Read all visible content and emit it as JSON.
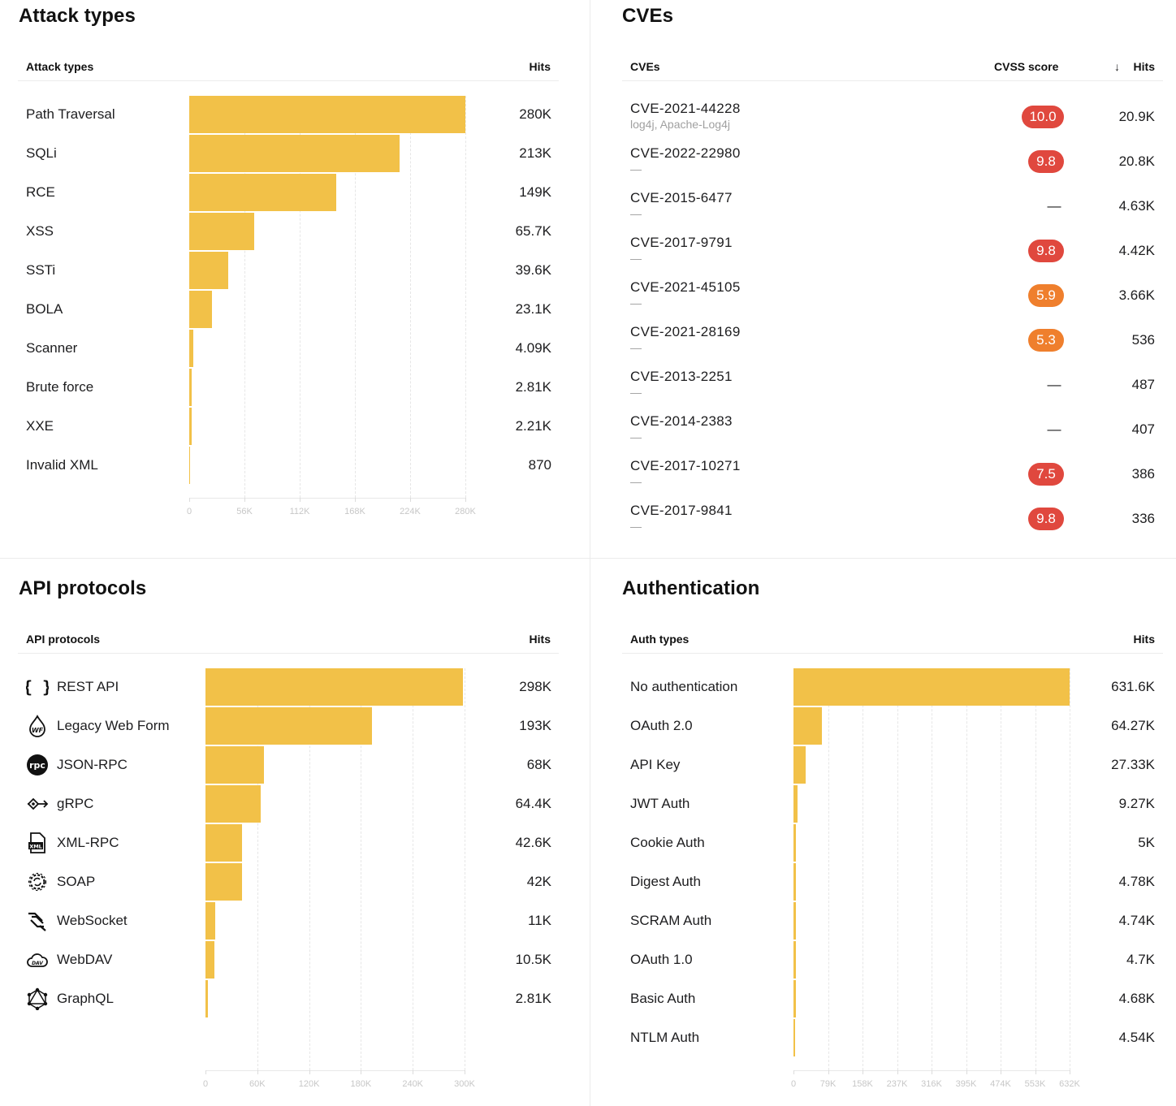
{
  "attack": {
    "title": "Attack types",
    "col_label": "Attack types",
    "col_hits": "Hits"
  },
  "cves": {
    "title": "CVEs",
    "col_label": "CVEs",
    "col_score": "CVSS score",
    "col_hits": "Hits",
    "sort_arrow": "↓",
    "rows": [
      {
        "id": "CVE-2021-44228",
        "sub": "log4j, Apache-Log4j",
        "score": "10.0",
        "severity": "critical",
        "hits": "20.9K"
      },
      {
        "id": "CVE-2022-22980",
        "sub": "—",
        "score": "9.8",
        "severity": "critical",
        "hits": "20.8K"
      },
      {
        "id": "CVE-2015-6477",
        "sub": "—",
        "score": "—",
        "severity": "none",
        "hits": "4.63K"
      },
      {
        "id": "CVE-2017-9791",
        "sub": "—",
        "score": "9.8",
        "severity": "critical",
        "hits": "4.42K"
      },
      {
        "id": "CVE-2021-45105",
        "sub": "—",
        "score": "5.9",
        "severity": "medium",
        "hits": "3.66K"
      },
      {
        "id": "CVE-2021-28169",
        "sub": "—",
        "score": "5.3",
        "severity": "medium",
        "hits": "536"
      },
      {
        "id": "CVE-2013-2251",
        "sub": "—",
        "score": "—",
        "severity": "none",
        "hits": "487"
      },
      {
        "id": "CVE-2014-2383",
        "sub": "—",
        "score": "—",
        "severity": "none",
        "hits": "407"
      },
      {
        "id": "CVE-2017-10271",
        "sub": "—",
        "score": "7.5",
        "severity": "critical",
        "hits": "386"
      },
      {
        "id": "CVE-2017-9841",
        "sub": "—",
        "score": "9.8",
        "severity": "critical",
        "hits": "336"
      }
    ]
  },
  "api": {
    "title": "API protocols",
    "col_label": "API protocols",
    "col_hits": "Hits"
  },
  "auth": {
    "title": "Authentication",
    "col_label": "Auth types",
    "col_hits": "Hits"
  },
  "colors": {
    "bar": "#f2c148",
    "critical": "#e0483e",
    "medium": "#ef7f2d"
  },
  "chart_data": [
    {
      "id": "attack",
      "type": "bar",
      "orientation": "horizontal",
      "categories": [
        "Path Traversal",
        "SQLi",
        "RCE",
        "XSS",
        "SSTi",
        "BOLA",
        "Scanner",
        "Brute force",
        "XXE",
        "Invalid XML"
      ],
      "values": [
        280000,
        213000,
        149000,
        65700,
        39600,
        23100,
        4090,
        2810,
        2210,
        870
      ],
      "value_labels": [
        "280K",
        "213K",
        "149K",
        "65.7K",
        "39.6K",
        "23.1K",
        "4.09K",
        "2.81K",
        "2.21K",
        "870"
      ],
      "xlim": [
        0,
        280000
      ],
      "ticks": [
        0,
        56000,
        112000,
        168000,
        224000,
        280000
      ],
      "tick_labels": [
        "0",
        "56K",
        "112K",
        "168K",
        "224K",
        "280K"
      ],
      "grid": true
    },
    {
      "id": "api",
      "type": "bar",
      "orientation": "horizontal",
      "categories": [
        "REST API",
        "Legacy Web Form",
        "JSON-RPC",
        "gRPC",
        "XML-RPC",
        "SOAP",
        "WebSocket",
        "WebDAV",
        "GraphQL"
      ],
      "icons": [
        "braces-icon",
        "legacy-web-form-icon",
        "rpc-icon",
        "grpc-icon",
        "xml-file-icon",
        "soap-gear-icon",
        "websocket-icon",
        "webdav-cloud-icon",
        "graphql-icon"
      ],
      "values": [
        298000,
        193000,
        68000,
        64400,
        42600,
        42000,
        11000,
        10500,
        2810
      ],
      "value_labels": [
        "298K",
        "193K",
        "68K",
        "64.4K",
        "42.6K",
        "42K",
        "11K",
        "10.5K",
        "2.81K"
      ],
      "xlim": [
        0,
        300000
      ],
      "ticks": [
        0,
        60000,
        120000,
        180000,
        240000,
        300000
      ],
      "tick_labels": [
        "0",
        "60K",
        "120K",
        "180K",
        "240K",
        "300K"
      ],
      "grid": true
    },
    {
      "id": "auth",
      "type": "bar",
      "orientation": "horizontal",
      "categories": [
        "No authentication",
        "OAuth 2.0",
        "API Key",
        "JWT Auth",
        "Cookie Auth",
        "Digest Auth",
        "SCRAM Auth",
        "OAuth 1.0",
        "Basic Auth",
        "NTLM Auth"
      ],
      "values": [
        631600,
        64270,
        27330,
        9270,
        5000,
        4780,
        4740,
        4700,
        4680,
        4540
      ],
      "value_labels": [
        "631.6K",
        "64.27K",
        "27.33K",
        "9.27K",
        "5K",
        "4.78K",
        "4.74K",
        "4.7K",
        "4.68K",
        "4.54K"
      ],
      "xlim": [
        0,
        632000
      ],
      "ticks": [
        0,
        79000,
        158000,
        237000,
        316000,
        395000,
        474000,
        553000,
        632000
      ],
      "tick_labels": [
        "0",
        "79K",
        "158K",
        "237K",
        "316K",
        "395K",
        "474K",
        "553K",
        "632K"
      ],
      "grid": true
    }
  ]
}
